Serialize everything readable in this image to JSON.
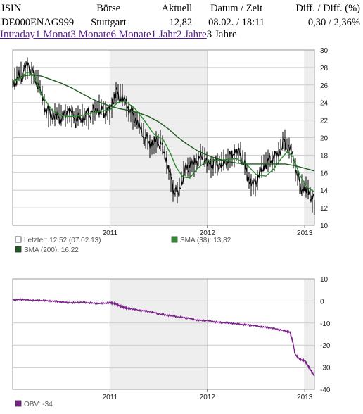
{
  "quote": {
    "headers": [
      "ISIN",
      "Börse",
      "Aktuell",
      "Datum / Zeit",
      "Diff. / Diff. (%)"
    ],
    "isin": "DE000ENAG999",
    "exchange": "Stuttgart",
    "current": "12,82",
    "datetime": "08.02. / 18:11",
    "diff": "0,30 / 2,36%"
  },
  "tabs": [
    {
      "label": "Intraday",
      "active": false
    },
    {
      "label": "1 Monat",
      "active": false
    },
    {
      "label": "3 Monate",
      "active": false
    },
    {
      "label": "6 Monate",
      "active": false
    },
    {
      "label": "1 Jahr",
      "active": false
    },
    {
      "label": "2 Jahre",
      "active": false
    },
    {
      "label": "3 Jahre",
      "active": true
    }
  ],
  "colors": {
    "price": "#000000",
    "sma38": "#2e8b2e",
    "sma200": "#1f5a1f",
    "obv": "#7a1f8a",
    "band": "#eeeeee",
    "grid": "#cccccc"
  },
  "chart_data": [
    {
      "type": "line",
      "x_ticks": [
        "2011",
        "2012",
        "2013"
      ],
      "ylim": [
        10,
        30
      ],
      "y_ticks": [
        10,
        12,
        14,
        16,
        18,
        20,
        22,
        24,
        26,
        28,
        30
      ],
      "axis_position": "right",
      "grid": true,
      "legend_position": "bottom",
      "legend": [
        {
          "name": "Letzter: 12,52 (07.02.13)",
          "swatch": "#ffffff"
        },
        {
          "name": "SMA (38): 13,82",
          "swatch": "#2e8b2e"
        },
        {
          "name": "SMA (200): 16,22",
          "swatch": "#1f5a1f"
        }
      ],
      "series": [
        {
          "key": "price",
          "x": [
            2010.0,
            2010.08,
            2010.15,
            2010.2,
            2010.28,
            2010.35,
            2010.42,
            2010.5,
            2010.58,
            2010.65,
            2010.72,
            2010.8,
            2010.88,
            2010.95,
            2011.0,
            2011.05,
            2011.12,
            2011.2,
            2011.28,
            2011.35,
            2011.42,
            2011.5,
            2011.55,
            2011.6,
            2011.65,
            2011.7,
            2011.75,
            2011.8,
            2011.88,
            2011.95,
            2012.0,
            2012.08,
            2012.15,
            2012.22,
            2012.28,
            2012.35,
            2012.42,
            2012.48,
            2012.55,
            2012.6,
            2012.65,
            2012.72,
            2012.78,
            2012.82,
            2012.86,
            2012.9,
            2012.95,
            2013.0,
            2013.05,
            2013.1
          ],
          "y": [
            26.2,
            27.0,
            28.4,
            27.5,
            25.5,
            23.0,
            22.5,
            22.2,
            23.2,
            22.0,
            22.3,
            22.8,
            23.2,
            22.9,
            23.1,
            25.0,
            24.6,
            23.2,
            21.8,
            20.0,
            19.3,
            19.6,
            18.5,
            16.5,
            14.2,
            13.5,
            15.5,
            16.8,
            17.2,
            17.8,
            17.0,
            17.1,
            16.8,
            17.6,
            18.4,
            18.0,
            15.3,
            14.5,
            16.2,
            17.0,
            17.5,
            18.0,
            19.4,
            19.0,
            18.5,
            17.0,
            14.5,
            14.0,
            13.8,
            12.5
          ]
        },
        {
          "key": "sma38",
          "x": [
            2010.0,
            2010.08,
            2010.15,
            2010.22,
            2010.3,
            2010.4,
            2010.5,
            2010.6,
            2010.7,
            2010.8,
            2010.9,
            2011.0,
            2011.08,
            2011.15,
            2011.25,
            2011.35,
            2011.45,
            2011.55,
            2011.62,
            2011.68,
            2011.75,
            2011.82,
            2011.9,
            2012.0,
            2012.1,
            2012.2,
            2012.3,
            2012.4,
            2012.5,
            2012.6,
            2012.68,
            2012.75,
            2012.82,
            2012.88,
            2012.95,
            2013.02,
            2013.1
          ],
          "y": [
            26.3,
            26.8,
            27.5,
            27.0,
            24.8,
            23.2,
            22.5,
            22.4,
            22.5,
            22.8,
            23.0,
            23.2,
            24.0,
            24.2,
            23.4,
            22.0,
            20.4,
            19.7,
            18.2,
            16.6,
            15.5,
            15.4,
            16.5,
            17.4,
            17.4,
            17.5,
            17.6,
            17.0,
            15.8,
            15.6,
            16.4,
            17.5,
            18.4,
            17.8,
            15.7,
            14.4,
            13.8
          ]
        },
        {
          "key": "sma200",
          "x": [
            2010.0,
            2010.1,
            2010.2,
            2010.3,
            2010.4,
            2010.5,
            2010.6,
            2010.7,
            2010.8,
            2010.9,
            2011.0,
            2011.1,
            2011.2,
            2011.3,
            2011.4,
            2011.5,
            2011.6,
            2011.7,
            2011.8,
            2011.9,
            2012.0,
            2012.1,
            2012.2,
            2012.3,
            2012.4,
            2012.5,
            2012.6,
            2012.7,
            2012.8,
            2012.9,
            2013.0,
            2013.1
          ],
          "y": [
            26.5,
            27.0,
            27.2,
            27.0,
            26.6,
            26.2,
            25.7,
            25.1,
            24.5,
            24.0,
            23.6,
            23.3,
            23.1,
            22.8,
            22.4,
            21.8,
            21.0,
            20.0,
            19.2,
            18.5,
            18.0,
            17.6,
            17.3,
            17.1,
            17.0,
            17.0,
            17.0,
            17.0,
            17.0,
            16.8,
            16.5,
            16.2
          ]
        }
      ]
    },
    {
      "type": "line",
      "x_ticks": [
        "2011",
        "2012",
        "2013"
      ],
      "ylim": [
        -40,
        10
      ],
      "y_ticks": [
        -40,
        -30,
        -20,
        -10,
        0,
        10
      ],
      "axis_position": "right",
      "grid": true,
      "legend_position": "bottom",
      "legend": [
        {
          "name": "OBV: -34",
          "swatch": "#7a1f8a"
        }
      ],
      "series": [
        {
          "key": "obv",
          "x": [
            2010.0,
            2010.1,
            2010.2,
            2010.3,
            2010.4,
            2010.5,
            2010.6,
            2010.7,
            2010.8,
            2010.9,
            2011.0,
            2011.05,
            2011.1,
            2011.15,
            2011.2,
            2011.3,
            2011.4,
            2011.5,
            2011.6,
            2011.7,
            2011.8,
            2011.9,
            2012.0,
            2012.1,
            2012.2,
            2012.3,
            2012.4,
            2012.5,
            2012.6,
            2012.7,
            2012.8,
            2012.85,
            2012.88,
            2012.9,
            2012.95,
            2013.0,
            2013.05,
            2013.1
          ],
          "y": [
            0.5,
            0.6,
            0.3,
            0.2,
            0.0,
            -0.5,
            -0.8,
            -0.6,
            -0.9,
            -1.2,
            -0.8,
            -1.2,
            -2.2,
            -3.0,
            -3.5,
            -4.2,
            -4.8,
            -5.8,
            -6.6,
            -7.2,
            -7.8,
            -8.8,
            -8.9,
            -9.6,
            -9.9,
            -10.4,
            -10.8,
            -11.3,
            -11.9,
            -12.6,
            -13.6,
            -14.2,
            -19.0,
            -24.0,
            -26.5,
            -27.0,
            -30.5,
            -34.0
          ]
        }
      ]
    }
  ]
}
